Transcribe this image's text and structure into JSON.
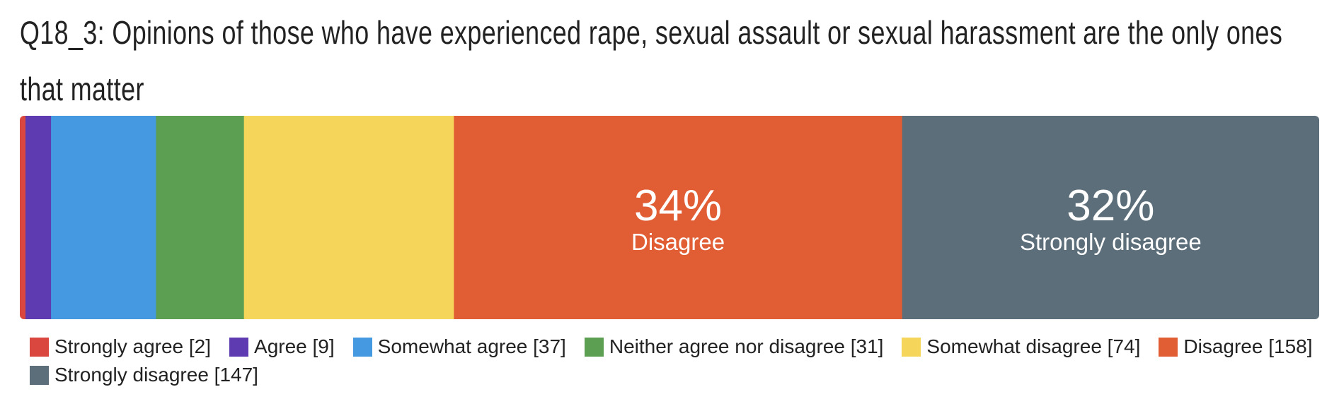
{
  "title": "Q18_3: Opinions of those who have experienced rape, sexual assault or sexual harassment are the only ones that matter",
  "chart_data": {
    "type": "bar",
    "orientation": "horizontal-stacked-100",
    "categories": [
      "Strongly agree",
      "Agree",
      "Somewhat agree",
      "Neither agree nor disagree",
      "Somewhat disagree",
      "Disagree",
      "Strongly disagree"
    ],
    "values": [
      2,
      9,
      37,
      31,
      74,
      158,
      147
    ],
    "colors": [
      "#d9473f",
      "#5e3bb0",
      "#4499e0",
      "#5c9f52",
      "#f6d65a",
      "#e15d34",
      "#5b6e7a"
    ],
    "legend_labels": [
      "Strongly agree [2]",
      "Agree [9]",
      "Somewhat agree [37]",
      "Neither agree nor disagree [31]",
      "Somewhat disagree [74]",
      "Disagree [158]",
      "Strongly disagree [147]"
    ],
    "segment_labels": [
      {
        "series_index": 5,
        "percent": "34%",
        "name": "Disagree"
      },
      {
        "series_index": 6,
        "percent": "32%",
        "name": "Strongly disagree"
      }
    ],
    "legend_placement": "bottom",
    "grid": false
  }
}
